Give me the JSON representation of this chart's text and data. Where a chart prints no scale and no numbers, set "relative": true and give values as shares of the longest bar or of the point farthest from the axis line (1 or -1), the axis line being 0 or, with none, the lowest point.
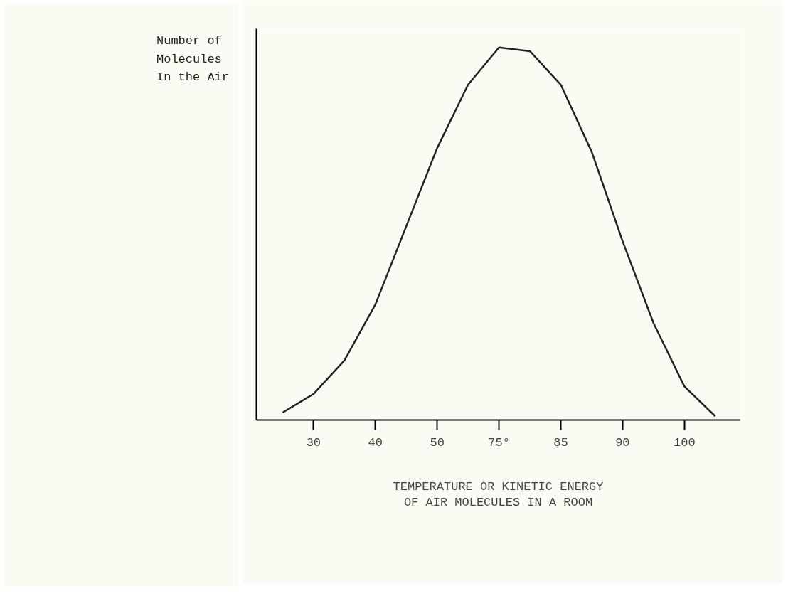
{
  "chart_data": {
    "type": "line",
    "relative": true,
    "ylabel": "Number of Molecules In the Air",
    "xlabel": "TEMPERATURE OR KINETIC ENERGY OF AIR MOLECULES IN A ROOM",
    "categories": [
      null,
      "30",
      null,
      "40",
      null,
      "50",
      null,
      "75°",
      null,
      "85",
      null,
      "90",
      null,
      "100",
      null
    ],
    "series": [
      {
        "color": "#222222",
        "values": [
          0.02,
          0.07,
          0.16,
          0.31,
          0.52,
          0.73,
          0.9,
          1,
          0.99,
          0.9,
          0.72,
          0.48,
          0.26,
          0.09,
          0.01
        ]
      }
    ],
    "grid": false,
    "marker": "none",
    "line_style": "solid"
  }
}
